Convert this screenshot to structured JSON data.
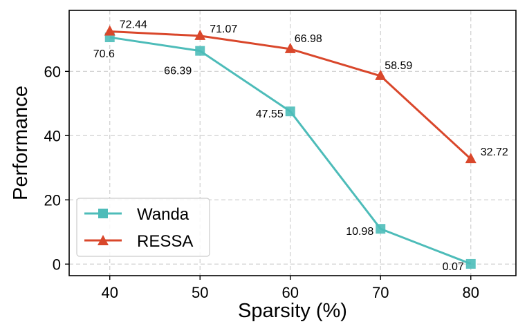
{
  "chart_data": {
    "type": "line",
    "xlabel": "Sparsity (%)",
    "ylabel": "Performance",
    "x": [
      40,
      50,
      60,
      70,
      80
    ],
    "xlim": [
      35.5,
      85
    ],
    "ylim": [
      -3.6,
      79
    ],
    "xticks": [
      "40",
      "50",
      "60",
      "70",
      "80"
    ],
    "yticks": [
      {
        "value": 0,
        "label": "0"
      },
      {
        "value": 20,
        "label": "20"
      },
      {
        "value": 40,
        "label": "40"
      },
      {
        "value": 60,
        "label": "60"
      }
    ],
    "grid": true,
    "legend_position": "lower-left",
    "series": [
      {
        "name": "Wanda",
        "color": "#4dbcb9",
        "marker": "square",
        "values": [
          70.6,
          66.39,
          47.55,
          10.98,
          0.07
        ],
        "labels": [
          "70.6",
          "66.39",
          "47.55",
          "10.98",
          "0.07"
        ]
      },
      {
        "name": "RESSA",
        "color": "#d9472b",
        "marker": "triangle",
        "values": [
          72.44,
          71.07,
          66.98,
          58.59,
          32.72
        ],
        "labels": [
          "72.44",
          "71.07",
          "66.98",
          "58.59",
          "32.72"
        ]
      }
    ]
  }
}
